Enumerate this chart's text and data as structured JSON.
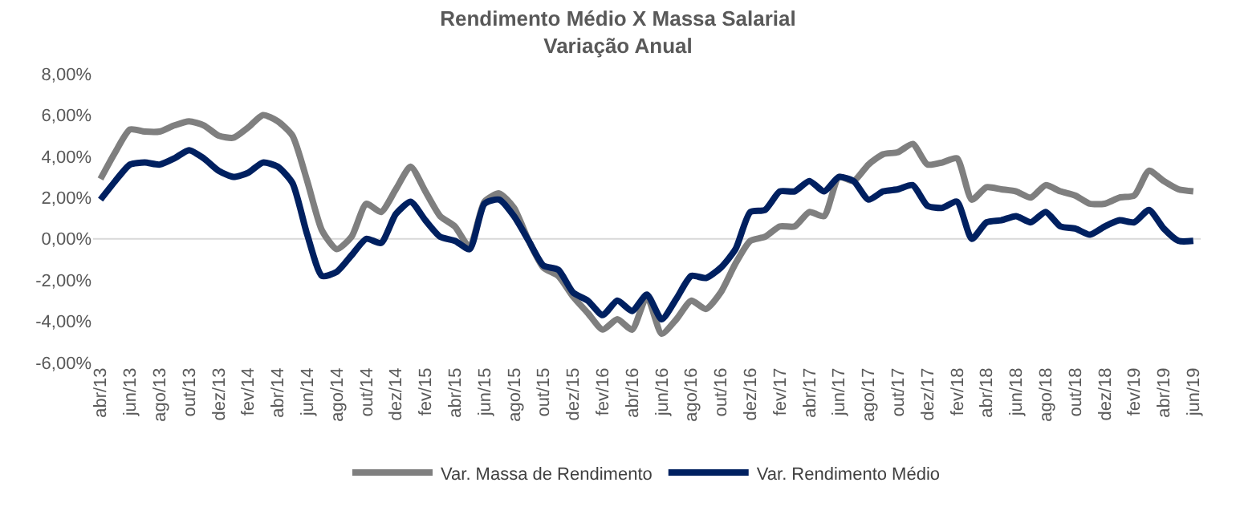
{
  "chart_data": {
    "type": "line",
    "title": "Rendimento Médio X Massa Salarial",
    "subtitle": "Variação Anual",
    "categories": [
      "abr/13",
      null,
      "jun/13",
      null,
      "ago/13",
      null,
      "out/13",
      null,
      "dez/13",
      null,
      "fev/14",
      null,
      "abr/14",
      null,
      "jun/14",
      null,
      "ago/14",
      null,
      "out/14",
      null,
      "dez/14",
      null,
      "fev/15",
      null,
      "abr/15",
      null,
      "jun/15",
      null,
      "ago/15",
      null,
      "out/15",
      null,
      "dez/15",
      null,
      "fev/16",
      null,
      "abr/16",
      null,
      "jun/16",
      null,
      "ago/16",
      null,
      "out/16",
      null,
      "dez/16",
      null,
      "fev/17",
      null,
      "abr/17",
      null,
      "jun/17",
      null,
      "ago/17",
      null,
      "out/17",
      null,
      "dez/17",
      null,
      "fev/18",
      null,
      "abr/18",
      null,
      "jun/18",
      null,
      "ago/18",
      null,
      "out/18",
      null,
      "dez/18",
      null,
      "fev/19",
      null,
      "abr/19",
      null,
      "jun/19"
    ],
    "series": [
      {
        "name": "Var. Massa de Rendimento",
        "color": "#7f7f7f",
        "values": [
          2.9,
          4.2,
          5.3,
          5.2,
          5.2,
          5.5,
          5.7,
          5.5,
          5.0,
          4.9,
          5.4,
          6.0,
          5.7,
          5.0,
          2.8,
          0.4,
          -0.5,
          0.1,
          1.7,
          1.3,
          2.4,
          3.5,
          2.3,
          1.1,
          0.6,
          -0.4,
          1.8,
          2.2,
          1.5,
          -0.1,
          -1.4,
          -1.8,
          -2.8,
          -3.6,
          -4.4,
          -3.9,
          -4.4,
          -2.8,
          -4.6,
          -3.9,
          -3.0,
          -3.4,
          -2.6,
          -1.2,
          -0.1,
          0.1,
          0.6,
          0.6,
          1.3,
          1.1,
          3.0,
          2.8,
          3.6,
          4.1,
          4.2,
          4.6,
          3.6,
          3.7,
          3.9,
          1.9,
          2.5,
          2.4,
          2.3,
          2.0,
          2.6,
          2.3,
          2.1,
          1.7,
          1.7,
          2.0,
          2.1,
          3.3,
          2.8,
          2.4,
          2.3
        ]
      },
      {
        "name": "Var. Rendimento Médio",
        "color": "#002060",
        "values": [
          1.9,
          2.8,
          3.6,
          3.7,
          3.6,
          3.9,
          4.3,
          3.9,
          3.3,
          3.0,
          3.2,
          3.7,
          3.5,
          2.7,
          0.2,
          -1.8,
          -1.6,
          -0.8,
          0.0,
          -0.2,
          1.2,
          1.8,
          0.9,
          0.1,
          -0.1,
          -0.5,
          1.7,
          1.9,
          1.1,
          -0.1,
          -1.3,
          -1.5,
          -2.6,
          -3.0,
          -3.7,
          -3.0,
          -3.5,
          -2.7,
          -3.9,
          -2.9,
          -1.8,
          -1.9,
          -1.4,
          -0.5,
          1.3,
          1.4,
          2.3,
          2.3,
          2.8,
          2.3,
          3.0,
          2.8,
          1.9,
          2.3,
          2.4,
          2.6,
          1.6,
          1.5,
          1.8,
          0.0,
          0.8,
          0.9,
          1.1,
          0.8,
          1.3,
          0.6,
          0.5,
          0.2,
          0.6,
          0.9,
          0.8,
          1.4,
          0.5,
          -0.1,
          -0.1
        ]
      }
    ],
    "ylim": [
      -6,
      8
    ],
    "yticks": [
      {
        "value": -6,
        "label": "-6,00%"
      },
      {
        "value": -4,
        "label": "-4,00%"
      },
      {
        "value": -2,
        "label": "-2,00%"
      },
      {
        "value": 0,
        "label": "0,00%"
      },
      {
        "value": 2,
        "label": "2,00%"
      },
      {
        "value": 4,
        "label": "4,00%"
      },
      {
        "value": 6,
        "label": "6,00%"
      },
      {
        "value": 8,
        "label": "8,00%"
      }
    ],
    "ref_lines": [
      {
        "axis": "y",
        "value": 0,
        "color": "#d9d9d9"
      }
    ],
    "grid": false,
    "legend": "bottom",
    "marker": "none",
    "line_style": "solid"
  }
}
